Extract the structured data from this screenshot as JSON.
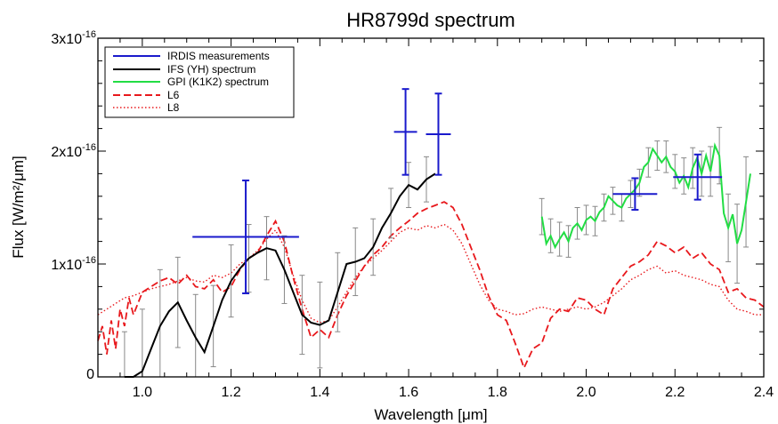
{
  "chart_data": {
    "type": "line",
    "title": "HR8799d spectrum",
    "xlabel": "Wavelength [μm]",
    "ylabel": "Flux [W/m²/μm]",
    "xlim": [
      0.9,
      2.4
    ],
    "ylim": [
      0,
      3e-16
    ],
    "x_ticks": [
      {
        "value": 1.0,
        "label": "1.0"
      },
      {
        "value": 1.2,
        "label": "1.2"
      },
      {
        "value": 1.4,
        "label": "1.4"
      },
      {
        "value": 1.6,
        "label": "1.6"
      },
      {
        "value": 1.8,
        "label": "1.8"
      },
      {
        "value": 2.0,
        "label": "2.0"
      },
      {
        "value": 2.2,
        "label": "2.2"
      },
      {
        "value": 2.4,
        "label": "2.4"
      }
    ],
    "y_ticks": [
      {
        "value": 0,
        "base": "0",
        "exp": ""
      },
      {
        "value": 1e-16,
        "base": "1x10",
        "exp": "-16"
      },
      {
        "value": 2e-16,
        "base": "2x10",
        "exp": "-16"
      },
      {
        "value": 3e-16,
        "base": "3x10",
        "exp": "-16"
      }
    ],
    "grid": false,
    "legend_position": "top-left",
    "colors": {
      "irdis": "#1a1acc",
      "ifs": "#000000",
      "gpi": "#22dd44",
      "model": "#e8181c",
      "errorbar": "#888888"
    },
    "series": [
      {
        "name": "IRDIS measurements",
        "style": "errorbar-cross",
        "color": "#1a1acc",
        "points": [
          {
            "x": 1.233,
            "xerr": 0.12,
            "y": 1.24e-16,
            "yerr": 5e-17
          },
          {
            "x": 1.593,
            "xerr": 0.026,
            "y": 2.17e-16,
            "yerr": 3.8e-17
          },
          {
            "x": 1.667,
            "xerr": 0.028,
            "y": 2.15e-16,
            "yerr": 3.6e-17
          },
          {
            "x": 2.11,
            "xerr": 0.05,
            "y": 1.62e-16,
            "yerr": 1.4e-17
          },
          {
            "x": 2.251,
            "xerr": 0.055,
            "y": 1.77e-16,
            "yerr": 2e-17
          }
        ]
      },
      {
        "name": "IFS (YH) spectrum",
        "style": "solid",
        "color": "#000000",
        "x": [
          0.96,
          0.98,
          1.0,
          1.02,
          1.04,
          1.06,
          1.08,
          1.1,
          1.12,
          1.14,
          1.16,
          1.18,
          1.2,
          1.22,
          1.24,
          1.26,
          1.28,
          1.3,
          1.32,
          1.34,
          1.36,
          1.38,
          1.4,
          1.42,
          1.44,
          1.46,
          1.48,
          1.5,
          1.52,
          1.54,
          1.56,
          1.58,
          1.6,
          1.62,
          1.64,
          1.66
        ],
        "y": [
          -3e-17,
          -1e-17,
          5e-18,
          2.5e-17,
          4.5e-17,
          5.8e-17,
          6.6e-17,
          5e-17,
          3.5e-17,
          2.2e-17,
          4.5e-17,
          6.8e-17,
          8.5e-17,
          9.6e-17,
          1.05e-16,
          1.1e-16,
          1.14e-16,
          1.12e-16,
          9.5e-17,
          7.5e-17,
          5.5e-17,
          4.8e-17,
          4.6e-17,
          5e-17,
          7.5e-17,
          1e-16,
          1.02e-16,
          1.05e-16,
          1.15e-16,
          1.32e-16,
          1.45e-16,
          1.6e-16,
          1.7e-16,
          1.66e-16,
          1.75e-16,
          1.8e-16
        ]
      },
      {
        "name": "GPI (K1K2) spectrum",
        "style": "solid",
        "color": "#22dd44",
        "x": [
          1.9,
          1.91,
          1.92,
          1.93,
          1.94,
          1.95,
          1.96,
          1.97,
          1.98,
          1.99,
          2.0,
          2.01,
          2.02,
          2.03,
          2.04,
          2.05,
          2.06,
          2.07,
          2.08,
          2.09,
          2.1,
          2.11,
          2.12,
          2.13,
          2.14,
          2.15,
          2.16,
          2.17,
          2.18,
          2.19,
          2.2,
          2.21,
          2.22,
          2.23,
          2.24,
          2.25,
          2.26,
          2.27,
          2.28,
          2.29,
          2.3,
          2.31,
          2.32,
          2.33,
          2.34,
          2.35,
          2.36,
          2.37
        ],
        "y": [
          1.42e-16,
          1.18e-16,
          1.25e-16,
          1.15e-16,
          1.22e-16,
          1.28e-16,
          1.2e-16,
          1.32e-16,
          1.36e-16,
          1.3e-16,
          1.39e-16,
          1.42e-16,
          1.38e-16,
          1.46e-16,
          1.5e-16,
          1.6e-16,
          1.56e-16,
          1.52e-16,
          1.5e-16,
          1.58e-16,
          1.62e-16,
          1.66e-16,
          1.72e-16,
          1.86e-16,
          1.9e-16,
          2.02e-16,
          1.96e-16,
          1.9e-16,
          1.95e-16,
          1.86e-16,
          1.82e-16,
          1.72e-16,
          1.78e-16,
          1.68e-16,
          1.85e-16,
          1.94e-16,
          1.8e-16,
          1.96e-16,
          1.82e-16,
          2.05e-16,
          1.96e-16,
          1.45e-16,
          1.32e-16,
          1.44e-16,
          1.18e-16,
          1.3e-16,
          1.55e-16,
          1.8e-16
        ]
      },
      {
        "name": "L6",
        "style": "dashed",
        "color": "#e8181c",
        "x": [
          0.9,
          0.91,
          0.92,
          0.93,
          0.94,
          0.95,
          0.96,
          0.97,
          0.98,
          0.99,
          1.0,
          1.02,
          1.04,
          1.06,
          1.08,
          1.1,
          1.12,
          1.14,
          1.16,
          1.18,
          1.2,
          1.22,
          1.24,
          1.26,
          1.28,
          1.3,
          1.32,
          1.34,
          1.36,
          1.38,
          1.4,
          1.42,
          1.44,
          1.46,
          1.48,
          1.5,
          1.52,
          1.54,
          1.56,
          1.58,
          1.6,
          1.62,
          1.64,
          1.66,
          1.68,
          1.7,
          1.72,
          1.74,
          1.76,
          1.78,
          1.8,
          1.82,
          1.84,
          1.86,
          1.88,
          1.9,
          1.92,
          1.94,
          1.96,
          1.98,
          2.0,
          2.02,
          2.04,
          2.06,
          2.08,
          2.1,
          2.12,
          2.14,
          2.16,
          2.18,
          2.2,
          2.22,
          2.24,
          2.26,
          2.28,
          2.3,
          2.32,
          2.34,
          2.36,
          2.38,
          2.4
        ],
        "y": [
          3.2e-17,
          4.5e-17,
          2e-17,
          5e-17,
          2.5e-17,
          6e-17,
          4.5e-17,
          7e-17,
          5.5e-17,
          6.5e-17,
          7.5e-17,
          8e-17,
          8.5e-17,
          8.8e-17,
          8.2e-17,
          9e-17,
          8e-17,
          7.8e-17,
          8.6e-17,
          7.5e-17,
          8e-17,
          9.5e-17,
          1.05e-16,
          1.1e-16,
          1.25e-16,
          1.38e-16,
          1.2e-16,
          8.8e-17,
          6e-17,
          3.5e-17,
          4.2e-17,
          3.5e-17,
          5.5e-17,
          7.2e-17,
          8.5e-17,
          9.8e-17,
          1.08e-16,
          1.15e-16,
          1.25e-16,
          1.32e-16,
          1.38e-16,
          1.45e-16,
          1.49e-16,
          1.52e-16,
          1.55e-16,
          1.5e-16,
          1.35e-16,
          1.15e-16,
          9.5e-17,
          7.2e-17,
          5.5e-17,
          5e-17,
          3e-17,
          8e-18,
          2.5e-17,
          3e-17,
          5.2e-17,
          6e-17,
          5.8e-17,
          7e-17,
          6.8e-17,
          6e-17,
          5.5e-17,
          7.8e-17,
          8.8e-17,
          9.8e-17,
          1.02e-16,
          1.08e-16,
          1.2e-16,
          1.16e-16,
          1.1e-16,
          1.15e-16,
          1.05e-16,
          1.1e-16,
          1e-16,
          9.5e-17,
          7.5e-17,
          7.8e-17,
          7e-17,
          6.8e-17,
          6.2e-17
        ]
      },
      {
        "name": "L8",
        "style": "dotted",
        "color": "#e8181c",
        "x": [
          0.9,
          0.92,
          0.94,
          0.96,
          0.98,
          1.0,
          1.02,
          1.04,
          1.06,
          1.08,
          1.1,
          1.12,
          1.14,
          1.16,
          1.18,
          1.2,
          1.22,
          1.24,
          1.26,
          1.28,
          1.3,
          1.32,
          1.34,
          1.36,
          1.38,
          1.4,
          1.42,
          1.44,
          1.46,
          1.48,
          1.5,
          1.52,
          1.54,
          1.56,
          1.58,
          1.6,
          1.62,
          1.64,
          1.66,
          1.68,
          1.7,
          1.72,
          1.74,
          1.76,
          1.78,
          1.8,
          1.82,
          1.84,
          1.86,
          1.88,
          1.9,
          1.92,
          1.94,
          1.96,
          1.98,
          2.0,
          2.02,
          2.04,
          2.06,
          2.08,
          2.1,
          2.12,
          2.14,
          2.16,
          2.18,
          2.2,
          2.22,
          2.24,
          2.26,
          2.28,
          2.3,
          2.32,
          2.34,
          2.36,
          2.38,
          2.4
        ],
        "y": [
          5.5e-17,
          6e-17,
          6.5e-17,
          7e-17,
          7.2e-17,
          7.5e-17,
          7.8e-17,
          8e-17,
          8.2e-17,
          8.5e-17,
          8.8e-17,
          8.5e-17,
          8.4e-17,
          9e-17,
          8.8e-17,
          9.2e-17,
          1e-16,
          1.05e-16,
          1.12e-16,
          1.22e-16,
          1.3e-16,
          1.15e-16,
          9e-17,
          6.8e-17,
          5.2e-17,
          4.8e-17,
          5e-17,
          6.2e-17,
          7.5e-17,
          8.8e-17,
          9.8e-17,
          1.05e-16,
          1.12e-16,
          1.2e-16,
          1.28e-16,
          1.32e-16,
          1.3e-16,
          1.34e-16,
          1.32e-16,
          1.35e-16,
          1.3e-16,
          1.18e-16,
          1e-16,
          8.2e-17,
          6.8e-17,
          6e-17,
          5.8e-17,
          5.5e-17,
          5.6e-17,
          6e-17,
          6.2e-17,
          6e-17,
          5.8e-17,
          6e-17,
          6.2e-17,
          6e-17,
          6.2e-17,
          6.6e-17,
          7.2e-17,
          7.8e-17,
          8.6e-17,
          9e-17,
          9.5e-17,
          9.8e-17,
          9.2e-17,
          9.4e-17,
          9e-17,
          8.8e-17,
          8.6e-17,
          8.2e-17,
          8e-17,
          6.8e-17,
          6e-17,
          5.8e-17,
          5.5e-17,
          5.5e-17
        ]
      }
    ],
    "ifs_error_bars": [
      {
        "x": 0.96,
        "yerr": 7e-17
      },
      {
        "x": 1.0,
        "yerr": 5.5e-17
      },
      {
        "x": 1.04,
        "yerr": 5e-17
      },
      {
        "x": 1.08,
        "yerr": 4e-17
      },
      {
        "x": 1.12,
        "yerr": 3.8e-17
      },
      {
        "x": 1.16,
        "yerr": 3.6e-17
      },
      {
        "x": 1.2,
        "yerr": 3.2e-17
      },
      {
        "x": 1.24,
        "yerr": 3e-17
      },
      {
        "x": 1.28,
        "yerr": 2.8e-17
      },
      {
        "x": 1.32,
        "yerr": 3e-17
      },
      {
        "x": 1.36,
        "yerr": 3.5e-17
      },
      {
        "x": 1.4,
        "yerr": 3.8e-17
      },
      {
        "x": 1.44,
        "yerr": 3.5e-17
      },
      {
        "x": 1.48,
        "yerr": 3e-17
      },
      {
        "x": 1.52,
        "yerr": 2.5e-17
      },
      {
        "x": 1.56,
        "yerr": 2.2e-17
      },
      {
        "x": 1.6,
        "yerr": 2e-17
      },
      {
        "x": 1.64,
        "yerr": 2e-17
      }
    ],
    "gpi_error_bars": [
      {
        "x": 1.9,
        "yerr": 1.6e-17
      },
      {
        "x": 1.92,
        "yerr": 1.5e-17
      },
      {
        "x": 1.94,
        "yerr": 1.5e-17
      },
      {
        "x": 1.96,
        "yerr": 1.4e-17
      },
      {
        "x": 1.98,
        "yerr": 1.4e-17
      },
      {
        "x": 2.0,
        "yerr": 1.3e-17
      },
      {
        "x": 2.02,
        "yerr": 1.3e-17
      },
      {
        "x": 2.04,
        "yerr": 1.2e-17
      },
      {
        "x": 2.06,
        "yerr": 1.2e-17
      },
      {
        "x": 2.08,
        "yerr": 1.2e-17
      },
      {
        "x": 2.1,
        "yerr": 1.2e-17
      },
      {
        "x": 2.12,
        "yerr": 1.2e-17
      },
      {
        "x": 2.14,
        "yerr": 1.3e-17
      },
      {
        "x": 2.16,
        "yerr": 1.3e-17
      },
      {
        "x": 2.18,
        "yerr": 1.4e-17
      },
      {
        "x": 2.2,
        "yerr": 1.5e-17
      },
      {
        "x": 2.22,
        "yerr": 1.6e-17
      },
      {
        "x": 2.24,
        "yerr": 1.8e-17
      },
      {
        "x": 2.26,
        "yerr": 2e-17
      },
      {
        "x": 2.28,
        "yerr": 2.2e-17
      },
      {
        "x": 2.3,
        "yerr": 2.5e-17
      },
      {
        "x": 2.32,
        "yerr": 3e-17
      },
      {
        "x": 2.34,
        "yerr": 3.5e-17
      },
      {
        "x": 2.36,
        "yerr": 4e-17
      }
    ]
  }
}
